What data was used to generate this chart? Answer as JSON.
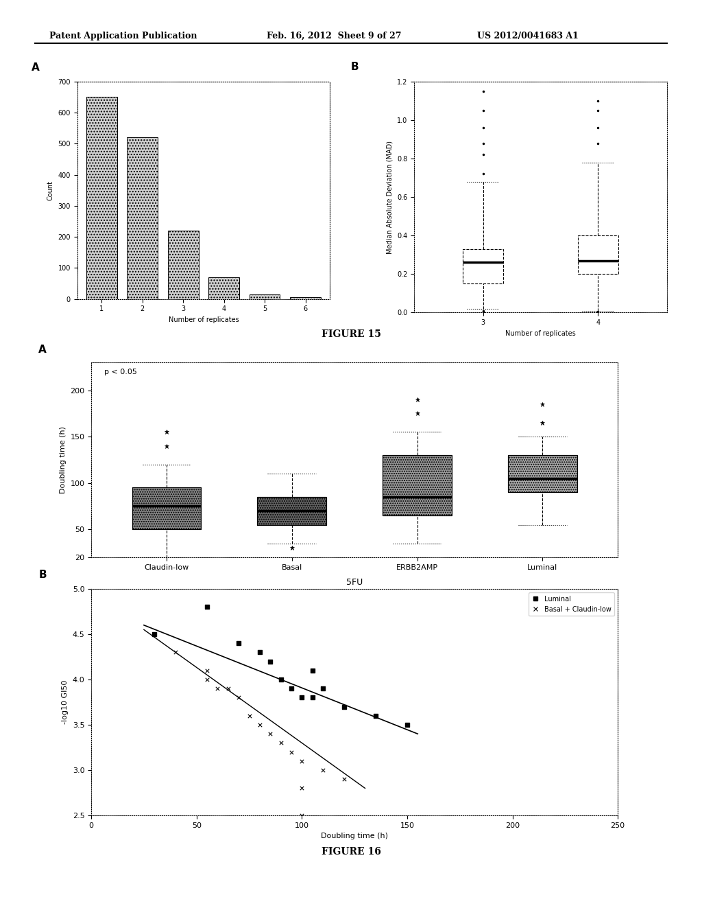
{
  "header": {
    "left": "Patent Application Publication",
    "center": "Feb. 16, 2012  Sheet 9 of 27",
    "right": "US 2012/0041683 A1"
  },
  "fig15_label": "FIGURE 15",
  "fig16_label": "FIGURE 16",
  "figA_bar": {
    "panel_label": "A",
    "categories": [
      1,
      2,
      3,
      4,
      5,
      6
    ],
    "values": [
      650,
      520,
      220,
      70,
      15,
      5
    ],
    "xlabel": "Number of replicates",
    "ylabel": "Count",
    "ylim": [
      0,
      700
    ],
    "yticks": [
      0,
      100,
      200,
      300,
      400,
      500,
      600,
      700
    ],
    "color": "#d0d0d0"
  },
  "figB_box": {
    "panel_label": "B",
    "box3": {
      "whisker_low": 0.02,
      "q1": 0.15,
      "median": 0.26,
      "q3": 0.33,
      "whisker_high": 0.68,
      "outliers_low": [
        0.005,
        0.008
      ],
      "outliers_high": [
        0.72,
        0.82,
        0.88,
        0.96,
        1.05,
        1.15
      ]
    },
    "box4": {
      "whisker_low": 0.01,
      "q1": 0.2,
      "median": 0.27,
      "q3": 0.4,
      "whisker_high": 0.78,
      "outliers_low": [
        0.005
      ],
      "outliers_high": [
        0.88,
        0.96,
        1.05,
        1.1
      ]
    },
    "xlabel": "Number of replicates",
    "ylabel": "Median Absolute Deviation (MAD)",
    "ylim": [
      0.0,
      1.2
    ],
    "yticks": [
      0.0,
      0.2,
      0.4,
      0.6,
      0.8,
      1.0,
      1.2
    ]
  },
  "figA2_box": {
    "panel_label": "A",
    "annotation": "p < 0.05",
    "groups": [
      "Claudin-low",
      "Basal",
      "ERBB2AMP",
      "Luminal"
    ],
    "boxes": [
      {
        "q1": 50,
        "median": 75,
        "q3": 95,
        "whisker_low": 20,
        "whisker_high": 120,
        "outliers_high": [
          140,
          155
        ],
        "outliers_low": []
      },
      {
        "q1": 55,
        "median": 70,
        "q3": 85,
        "whisker_low": 35,
        "whisker_high": 110,
        "outliers_high": [],
        "outliers_low": [
          30
        ]
      },
      {
        "q1": 65,
        "median": 85,
        "q3": 130,
        "whisker_low": 35,
        "whisker_high": 155,
        "outliers_high": [
          175,
          190
        ],
        "outliers_low": []
      },
      {
        "q1": 90,
        "median": 105,
        "q3": 130,
        "whisker_low": 55,
        "whisker_high": 150,
        "outliers_high": [
          165,
          185
        ],
        "outliers_low": []
      }
    ],
    "colors": [
      "#888888",
      "#666666",
      "#999999",
      "#aaaaaa"
    ],
    "ylabel": "Doubling time (h)",
    "ylim": [
      20,
      230
    ],
    "yticks": [
      20,
      50,
      100,
      150,
      200
    ]
  },
  "figB2_scatter": {
    "panel_label": "B",
    "title": "5FU",
    "xlabel": "Doubling time (h)",
    "ylabel": "-log10 GI50",
    "xlim": [
      0,
      250
    ],
    "ylim": [
      2.5,
      5.0
    ],
    "xticks": [
      0,
      50,
      100,
      150,
      200,
      250
    ],
    "yticks": [
      2.5,
      3.0,
      3.5,
      4.0,
      4.5,
      5.0
    ],
    "luminal_x": [
      30,
      55,
      70,
      80,
      85,
      90,
      95,
      100,
      105,
      110,
      120,
      135,
      150,
      105
    ],
    "luminal_y": [
      4.5,
      4.8,
      4.4,
      4.3,
      4.2,
      4.0,
      3.9,
      3.8,
      4.1,
      3.9,
      3.7,
      3.6,
      3.5,
      3.8
    ],
    "basal_x": [
      30,
      40,
      55,
      60,
      65,
      70,
      75,
      80,
      85,
      90,
      95,
      100,
      100,
      110,
      120,
      55,
      100
    ],
    "basal_y": [
      4.5,
      4.3,
      4.1,
      3.9,
      3.9,
      3.8,
      3.6,
      3.5,
      3.4,
      3.3,
      3.2,
      3.1,
      2.8,
      3.0,
      2.9,
      4.0,
      2.5
    ],
    "luminal_line_x": [
      25,
      155
    ],
    "luminal_line_y": [
      4.6,
      3.4
    ],
    "basal_line_x": [
      25,
      130
    ],
    "basal_line_y": [
      4.55,
      2.8
    ]
  }
}
